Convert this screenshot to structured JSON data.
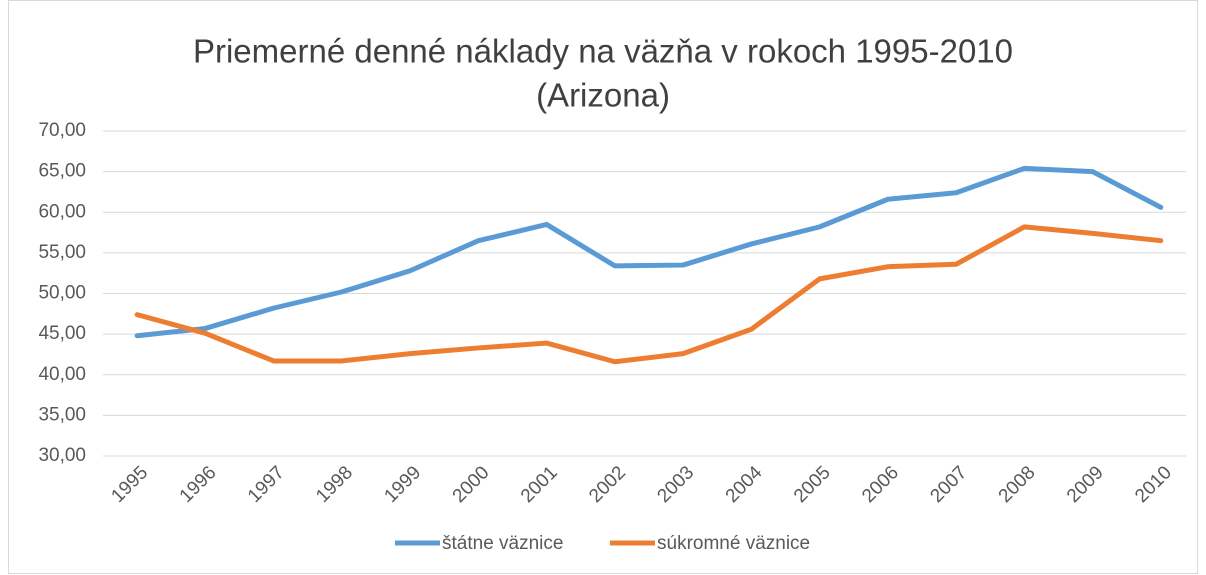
{
  "chart_data": {
    "type": "line",
    "title": [
      "Priemerné denné náklady na väzňa v rokoch 1995-2010",
      "(Arizona)"
    ],
    "categories": [
      "1995",
      "1996",
      "1997",
      "1998",
      "1999",
      "2000",
      "2001",
      "2002",
      "2003",
      "2004",
      "2005",
      "2006",
      "2007",
      "2008",
      "2009",
      "2010"
    ],
    "series": [
      {
        "name": "štátne väznice",
        "color": "#5b9bd5",
        "values": [
          44.8,
          45.7,
          48.2,
          50.2,
          52.8,
          56.5,
          58.5,
          53.4,
          53.5,
          56.1,
          58.2,
          61.6,
          62.4,
          65.4,
          65.0,
          60.6
        ]
      },
      {
        "name": "súkromné väznice",
        "color": "#ed7d31",
        "values": [
          47.4,
          45.1,
          41.7,
          41.7,
          42.6,
          43.3,
          43.9,
          41.6,
          42.6,
          45.6,
          51.8,
          53.3,
          53.6,
          58.2,
          57.4,
          56.5
        ]
      }
    ],
    "ylim": [
      30,
      70
    ],
    "yticks": [
      {
        "value": 30,
        "label": "30,00"
      },
      {
        "value": 35,
        "label": "35,00"
      },
      {
        "value": 40,
        "label": "40,00"
      },
      {
        "value": 45,
        "label": "45,00"
      },
      {
        "value": 50,
        "label": "50,00"
      },
      {
        "value": 55,
        "label": "55,00"
      },
      {
        "value": 60,
        "label": "60,00"
      },
      {
        "value": 65,
        "label": "65,00"
      },
      {
        "value": 70,
        "label": "70,00"
      }
    ],
    "grid": true,
    "legend": "bottom"
  }
}
